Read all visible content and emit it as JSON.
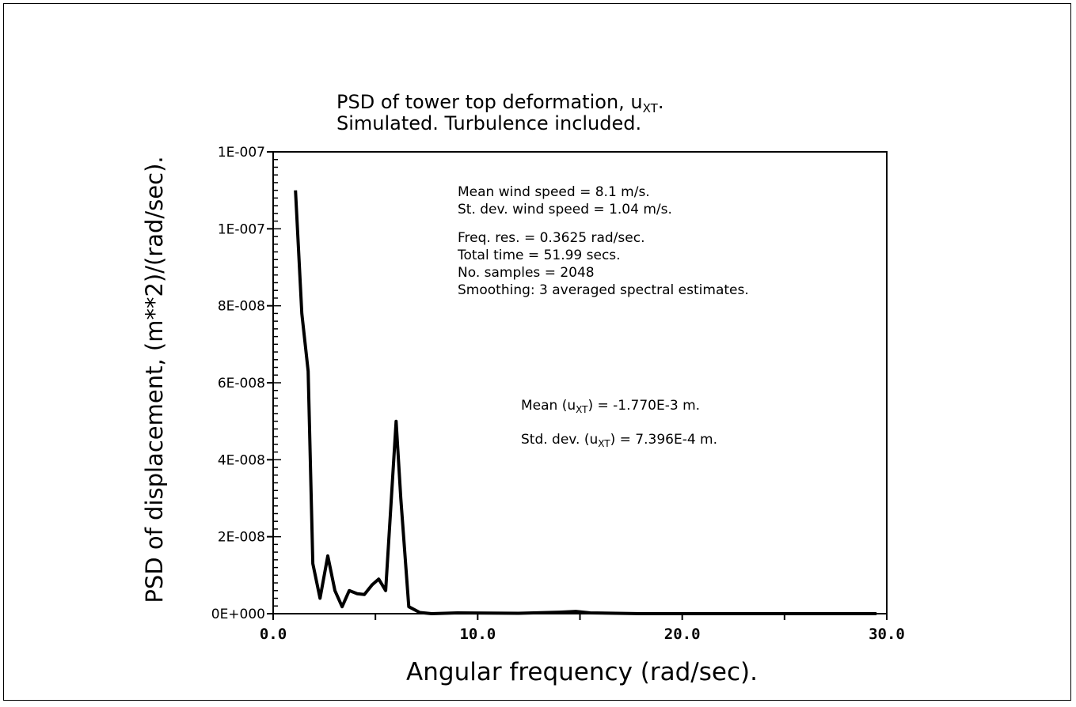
{
  "chart_data": {
    "type": "line",
    "title": "PSD of tower top deformation, u",
    "title_subscript": "XT",
    "title_end": ".",
    "subtitle": "Simulated. Turbulence included.",
    "xlabel": "Angular frequency (rad/sec).",
    "ylabel": "PSD of displacement, (m**2)/(rad/sec).",
    "xlim": [
      0,
      30
    ],
    "ylim": [
      0,
      1.2e-07
    ],
    "x_ticks": [
      0,
      10,
      20,
      30
    ],
    "x_tick_labels": [
      "0.0",
      "10.0",
      "20.0",
      "30.0"
    ],
    "y_ticks": [
      0,
      2e-08,
      4e-08,
      6e-08,
      8e-08,
      1e-07,
      1.2e-07
    ],
    "y_tick_labels": [
      "0E+000",
      "2E-008",
      "4E-008",
      "6E-008",
      "8E-008",
      "1E-007",
      "1E-007"
    ],
    "grid": false,
    "series": [
      {
        "x": [
          1.09,
          1.4,
          1.71,
          1.94,
          2.29,
          2.67,
          3.02,
          3.37,
          3.72,
          4.11,
          4.46,
          4.84,
          5.16,
          5.5,
          5.78,
          6.01,
          6.24,
          6.63,
          7.17,
          7.75,
          9,
          12,
          14,
          14.8,
          15.5,
          18,
          22,
          25,
          29.5
        ],
        "y": [
          1.1e-07,
          7.8e-08,
          6.3e-08,
          1.3e-08,
          4e-09,
          1.5e-08,
          6e-09,
          1.8e-09,
          6e-09,
          5.2e-09,
          5e-09,
          7.5e-09,
          9e-09,
          6e-09,
          3e-08,
          5e-08,
          3e-08,
          1.8e-09,
          3e-10,
          0,
          2e-10,
          1e-10,
          4e-10,
          6e-10,
          2e-10,
          0,
          0,
          0,
          0
        ]
      }
    ],
    "annotations": {
      "wind_mean": "Mean wind speed = 8.1 m/s.",
      "wind_std": "St. dev. wind speed = 1.04 m/s.",
      "freq_res": "Freq. res. = 0.3625 rad/sec.",
      "total_time": "Total time = 51.99 secs.",
      "samples": "No. samples = 2048",
      "smoothing": "Smoothing: 3 averaged spectral estimates.",
      "mean_pre": "Mean (u",
      "mean_post": ") = -1.770E-3 m.",
      "std_pre": "Std. dev. (u",
      "std_post": ") = 7.396E-4 m.",
      "sub": "XT"
    }
  }
}
